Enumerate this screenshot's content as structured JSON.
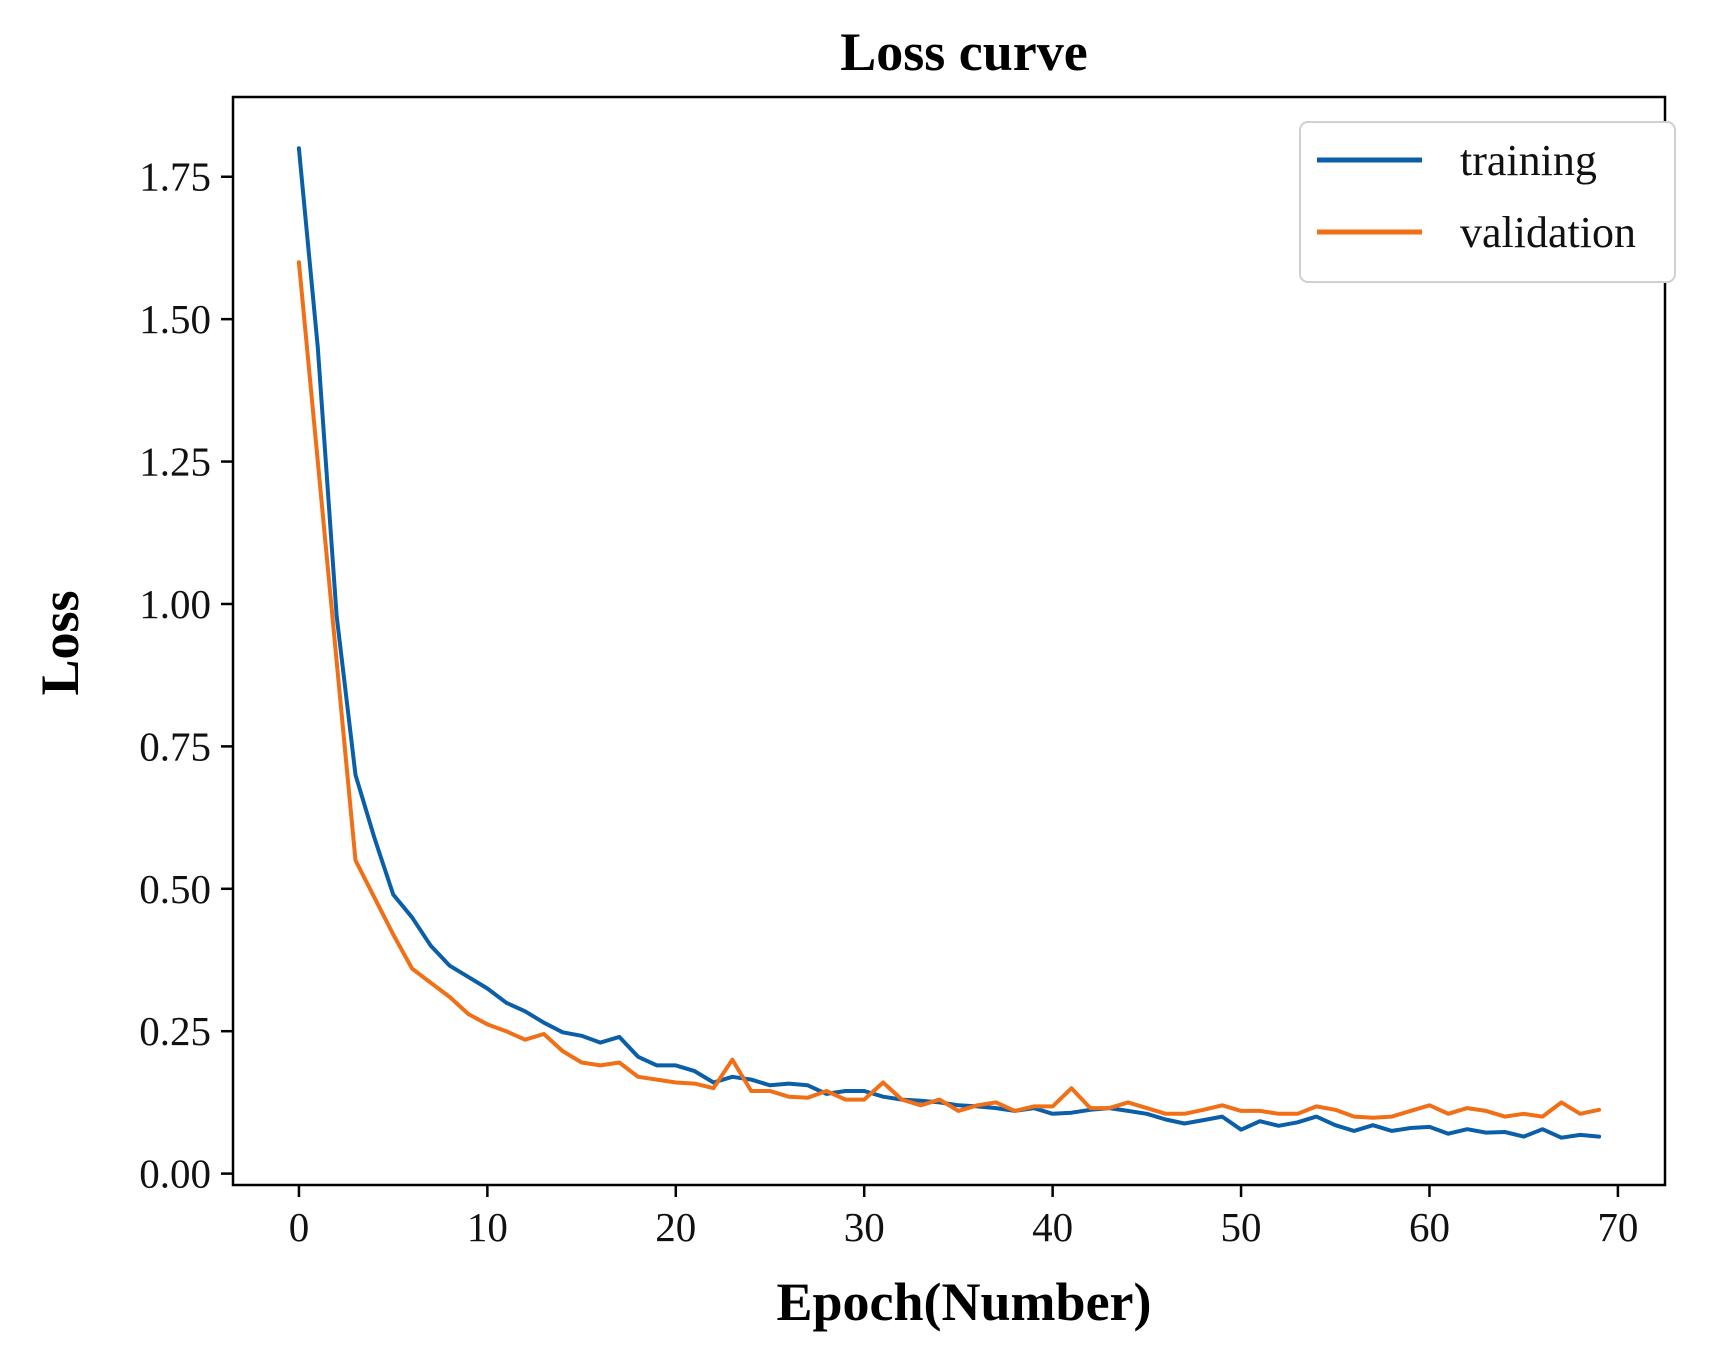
{
  "chart_data": {
    "type": "line",
    "title": "Loss curve",
    "xlabel": "Epoch(Number)",
    "ylabel": "Loss",
    "xlim": [
      -3.5,
      72.5
    ],
    "ylim": [
      -0.02,
      1.89
    ],
    "xticks": [
      0,
      10,
      20,
      30,
      40,
      50,
      60,
      70
    ],
    "yticks": [
      0.0,
      0.25,
      0.5,
      0.75,
      1.0,
      1.25,
      1.5,
      1.75
    ],
    "xtick_labels": [
      "0",
      "10",
      "20",
      "30",
      "40",
      "50",
      "60",
      "70"
    ],
    "ytick_labels": [
      "0.00",
      "0.25",
      "0.50",
      "0.75",
      "1.00",
      "1.25",
      "1.50",
      "1.75"
    ],
    "grid": false,
    "legend_position": "top-right",
    "x": [
      0,
      1,
      2,
      3,
      4,
      5,
      6,
      7,
      8,
      9,
      10,
      11,
      12,
      13,
      14,
      15,
      16,
      17,
      18,
      19,
      20,
      21,
      22,
      23,
      24,
      25,
      26,
      27,
      28,
      29,
      30,
      31,
      32,
      33,
      34,
      35,
      36,
      37,
      38,
      39,
      40,
      41,
      42,
      43,
      44,
      45,
      46,
      47,
      48,
      49,
      50,
      51,
      52,
      53,
      54,
      55,
      56,
      57,
      58,
      59,
      60,
      61,
      62,
      63,
      64,
      65,
      66,
      67,
      68,
      69
    ],
    "series": [
      {
        "name": "training",
        "color": "#0a5fa8",
        "values": [
          1.8,
          1.45,
          0.98,
          0.7,
          0.59,
          0.49,
          0.45,
          0.4,
          0.365,
          0.345,
          0.325,
          0.3,
          0.285,
          0.265,
          0.248,
          0.242,
          0.23,
          0.24,
          0.205,
          0.19,
          0.19,
          0.18,
          0.16,
          0.17,
          0.165,
          0.155,
          0.158,
          0.155,
          0.14,
          0.145,
          0.145,
          0.135,
          0.13,
          0.128,
          0.125,
          0.12,
          0.118,
          0.115,
          0.11,
          0.115,
          0.105,
          0.107,
          0.112,
          0.115,
          0.11,
          0.105,
          0.095,
          0.088,
          0.094,
          0.1,
          0.077,
          0.092,
          0.084,
          0.09,
          0.1,
          0.085,
          0.075,
          0.085,
          0.075,
          0.08,
          0.082,
          0.07,
          0.078,
          0.072,
          0.073,
          0.065,
          0.078,
          0.063,
          0.068,
          0.065
        ]
      },
      {
        "name": "validation",
        "color": "#f06f17",
        "values": [
          1.6,
          1.25,
          0.9,
          0.55,
          0.485,
          0.42,
          0.36,
          0.335,
          0.31,
          0.28,
          0.262,
          0.25,
          0.235,
          0.245,
          0.215,
          0.195,
          0.19,
          0.195,
          0.17,
          0.165,
          0.16,
          0.158,
          0.15,
          0.2,
          0.145,
          0.145,
          0.135,
          0.133,
          0.145,
          0.13,
          0.13,
          0.16,
          0.13,
          0.12,
          0.13,
          0.11,
          0.12,
          0.125,
          0.11,
          0.118,
          0.118,
          0.15,
          0.115,
          0.115,
          0.125,
          0.115,
          0.105,
          0.105,
          0.112,
          0.12,
          0.11,
          0.11,
          0.105,
          0.105,
          0.118,
          0.112,
          0.1,
          0.098,
          0.1,
          0.11,
          0.12,
          0.105,
          0.115,
          0.11,
          0.1,
          0.105,
          0.1,
          0.125,
          0.105,
          0.112
        ]
      }
    ]
  }
}
